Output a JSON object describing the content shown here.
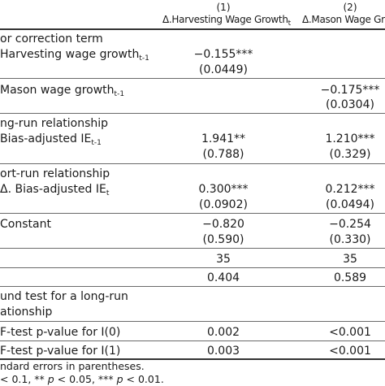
{
  "header": {
    "col1_number": "(1)",
    "col1_title": "Δ.Harvesting Wage Growth",
    "col1_sub": "t",
    "col2_number": "(2)",
    "col2_title": "Δ.Mason Wage Growt"
  },
  "rows": {
    "ect_label": "or correction term",
    "harvest_label": "Harvesting wage growth",
    "harvest_sub": "t-1",
    "harvest_c1_coef": "−0.155***",
    "harvest_c1_se": "(0.0449)",
    "mason_label": "Mason wage growth",
    "mason_sub": "t-1",
    "mason_c2_coef": "−0.175***",
    "mason_c2_se": "(0.0304)",
    "lr_label": "ng-run relationship",
    "lr_ie_label": "Bias-adjusted IE",
    "lr_ie_sub": "t-1",
    "lr_c1_coef": "1.941**",
    "lr_c1_se": "(0.788)",
    "lr_c2_coef": "1.210***",
    "lr_c2_se": "(0.329)",
    "sr_label": "ort-run relationship",
    "sr_ie_label": "Δ. Bias-adjusted IE",
    "sr_ie_sub": "t",
    "sr_c1_coef": "0.300***",
    "sr_c1_se": "(0.0902)",
    "sr_c2_coef": "0.212***",
    "sr_c2_se": "(0.0494)",
    "const_label": "Constant",
    "const_c1_coef": "−0.820",
    "const_c1_se": "(0.590)",
    "const_c2_coef": "−0.254",
    "const_c2_se": "(0.330)",
    "n_c1": "35",
    "n_c2": "35",
    "r2_c1": "0.404",
    "r2_c2": "0.589",
    "bound_label_1": "und test for a long-run",
    "bound_label_2": "ationship",
    "f0_label": "F-test p-value for I(0)",
    "f0_c1": "0.002",
    "f0_c2": "<0.001",
    "f1_label": "F-test p-value for I(1)",
    "f1_c1": "0.003",
    "f1_c2": "<0.001"
  },
  "notes": {
    "line1": "ndard errors in parentheses.",
    "line2_a": "< 0.1, ** ",
    "line2_p1": "p",
    "line2_b": " < 0.05, *** ",
    "line2_p2": "p",
    "line2_c": " < 0.01."
  }
}
